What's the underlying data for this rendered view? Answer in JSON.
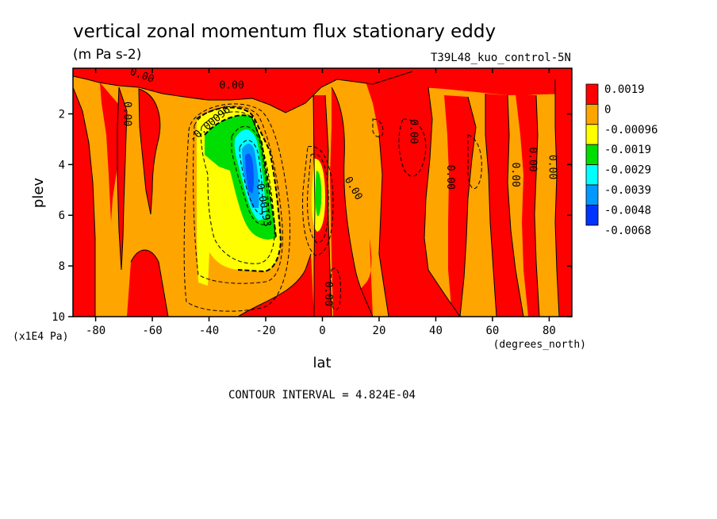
{
  "chart_data": {
    "type": "heatmap",
    "title": "vertical zonal momentum flux stationary eddy",
    "subtitle": "(m Pa s-2)",
    "run_label": "T39L48_kuo_control-5N",
    "xlabel": "lat",
    "x_units": "(degrees_north)",
    "ylabel": "plev",
    "y_units": "(x1E4 Pa)",
    "xlim": [
      -88,
      88
    ],
    "ylim": [
      10,
      0.2
    ],
    "x_ticks": [
      -80,
      -60,
      -40,
      -20,
      0,
      20,
      40,
      60,
      80
    ],
    "y_ticks": [
      2,
      4,
      6,
      8,
      10
    ],
    "legend": {
      "placement": "right",
      "levels": [
        {
          "label": "0.0019",
          "color": "#ff0000"
        },
        {
          "label": "0",
          "color": "#ffa500"
        },
        {
          "label": "-0.00096",
          "color": "#ffff00"
        },
        {
          "label": "-0.0019",
          "color": "#00dd00"
        },
        {
          "label": "-0.0029",
          "color": "#00ffff"
        },
        {
          "label": "-0.0039",
          "color": "#0099ff"
        },
        {
          "label": "-0.0048",
          "color": "#0055ff"
        },
        {
          "label": "-0.0068",
          "color": ""
        }
      ]
    },
    "contour_labels": [
      {
        "text": "0.00",
        "lat": -64,
        "plev": 0.6
      },
      {
        "text": "0.00",
        "lat": -32,
        "plev": 1.0
      },
      {
        "text": "0.00",
        "lat": -70,
        "plev": 2.0
      },
      {
        "text": "-0.00096",
        "lat": -39,
        "plev": 2.5
      },
      {
        "text": "-0.00193",
        "lat": -22,
        "plev": 5.5
      },
      {
        "text": "0.00",
        "lat": 10,
        "plev": 5.0
      },
      {
        "text": "0.00",
        "lat": 31,
        "plev": 2.7
      },
      {
        "text": "0.00",
        "lat": 44,
        "plev": 4.5
      },
      {
        "text": "0.00",
        "lat": 67,
        "plev": 4.4
      },
      {
        "text": "0.00",
        "lat": 73,
        "plev": 3.8
      },
      {
        "text": "0.00",
        "lat": 80,
        "plev": 4.1
      },
      {
        "text": "0.00",
        "lat": 1,
        "plev": 9.1
      }
    ],
    "contour_interval_note": "CONTOUR INTERVAL = 4.824E-04"
  }
}
